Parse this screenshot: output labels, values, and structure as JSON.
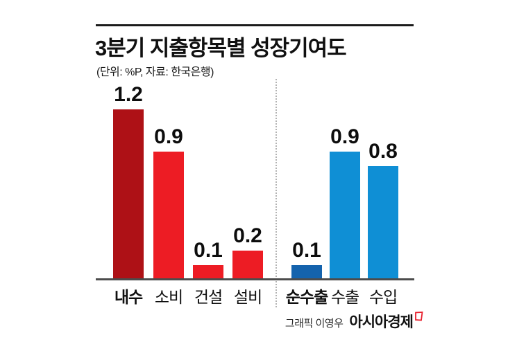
{
  "header": {
    "title": "3분기 지출항목별 성장기여도",
    "subtitle": "(단위: %P, 자료: 한국은행)"
  },
  "chart_data": {
    "type": "bar",
    "title": "3분기 지출항목별 성장기여도",
    "unit": "%P",
    "source": "한국은행",
    "ylim": [
      0,
      1.3
    ],
    "grid": false,
    "legend": false,
    "value_labels": true,
    "groups": [
      {
        "name": "domestic-demand",
        "bars": [
          {
            "label": "내수",
            "value": 1.2,
            "color": "#ae1116",
            "emphasized": true
          },
          {
            "label": "소비",
            "value": 0.9,
            "color": "#ed1c24",
            "emphasized": false
          },
          {
            "label": "건설",
            "value": 0.1,
            "color": "#ed1c24",
            "emphasized": false
          },
          {
            "label": "설비",
            "value": 0.2,
            "color": "#ed1c24",
            "emphasized": false
          }
        ]
      },
      {
        "name": "net-exports",
        "bars": [
          {
            "label": "순수출",
            "value": 0.1,
            "color": "#1463ad",
            "emphasized": true
          },
          {
            "label": "수출",
            "value": 0.9,
            "color": "#0f8fd5",
            "emphasized": false
          },
          {
            "label": "수입",
            "value": 0.8,
            "color": "#0f8fd5",
            "emphasized": false
          }
        ]
      }
    ]
  },
  "footer": {
    "credit": "그래픽 이영우",
    "brand": "아시아경제"
  },
  "colors": {
    "dark_red": "#ae1116",
    "red": "#ed1c24",
    "dark_blue": "#1463ad",
    "blue": "#0f8fd5",
    "axis": "#4c4c4c",
    "brand_mark": "#e8212e"
  }
}
